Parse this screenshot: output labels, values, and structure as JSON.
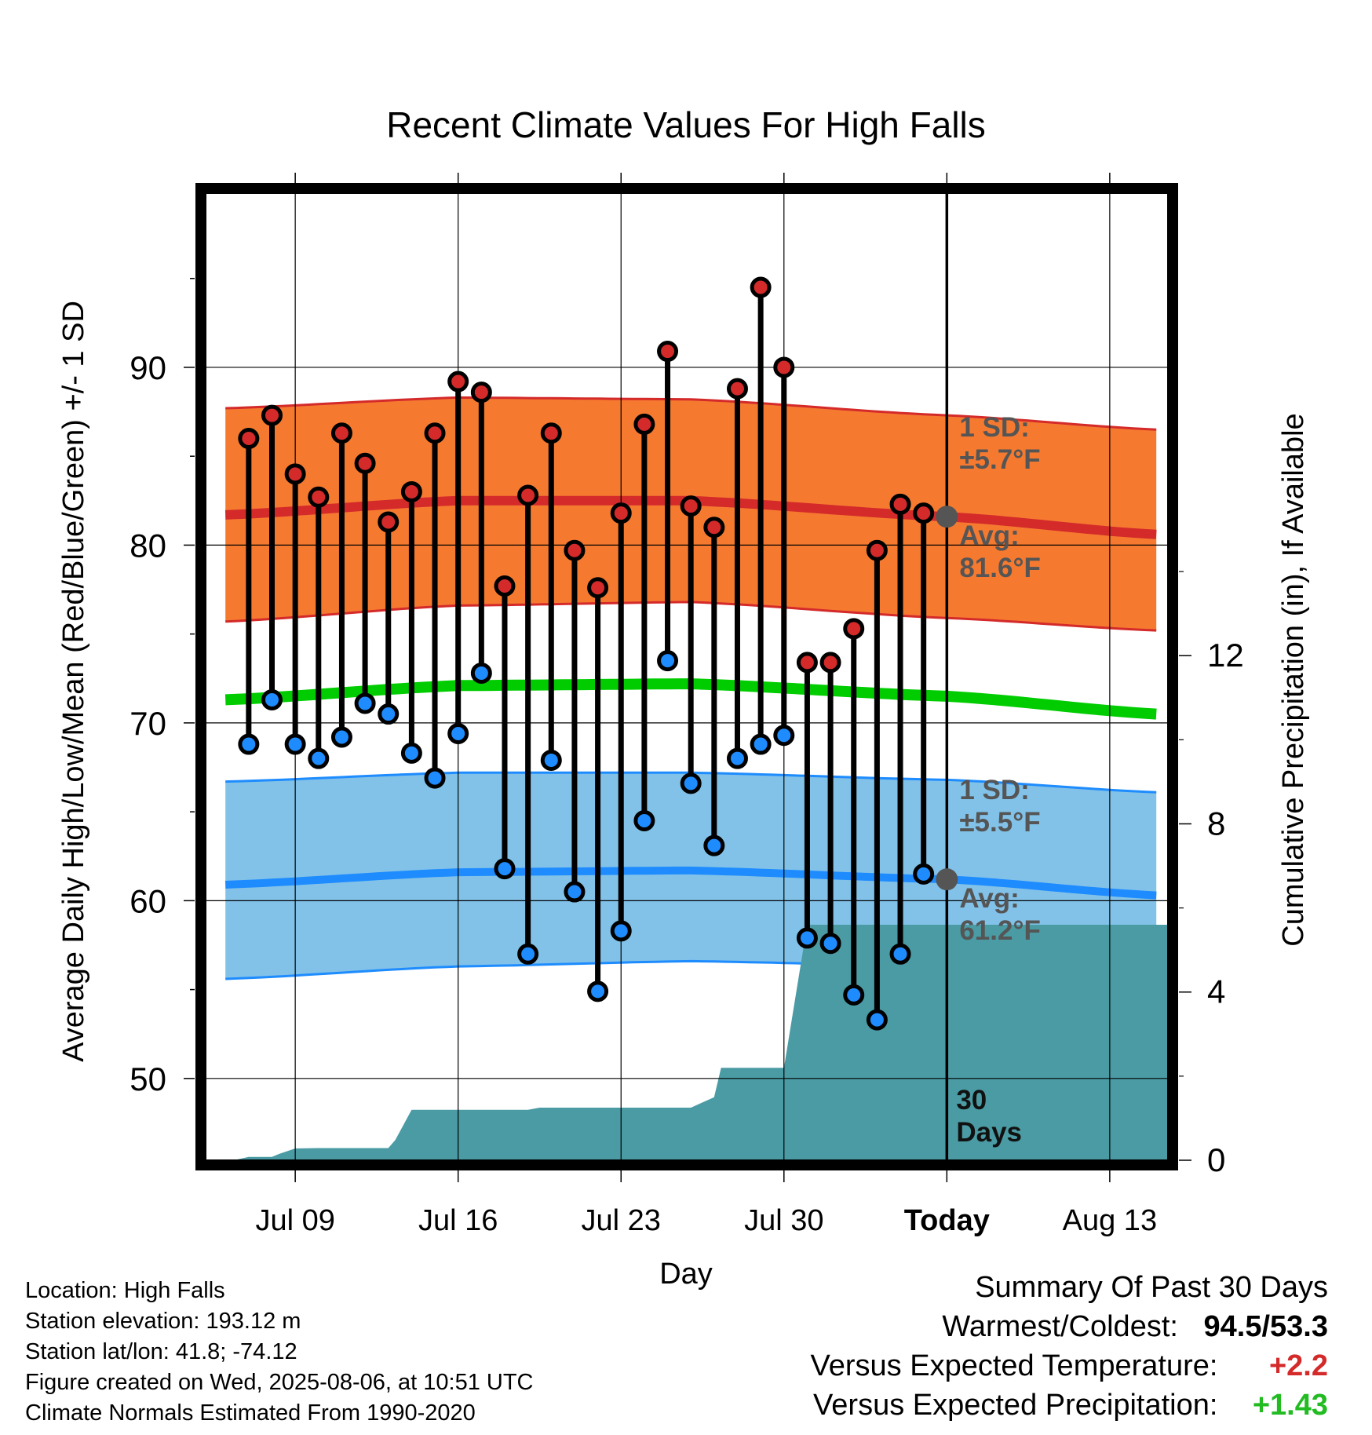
{
  "chart_data": {
    "type": "line",
    "title": "Recent Climate Values For High Falls",
    "xlabel": "Day",
    "ylabel": "Average Daily High/Low/Mean (Red/Blue/Green) +/- 1 SD",
    "y2label": "Cumulative Precipitation (in), If Available",
    "xlim": [
      -0.85,
      40.5
    ],
    "ylim": [
      45.4,
      99.8
    ],
    "y2lim": [
      0,
      23
    ],
    "x_ticks": [
      {
        "x": 3,
        "label": "Jul 09"
      },
      {
        "x": 10,
        "label": "Jul 16"
      },
      {
        "x": 17,
        "label": "Jul 23"
      },
      {
        "x": 24,
        "label": "Jul 30"
      },
      {
        "x": 31,
        "label": "Today"
      },
      {
        "x": 38,
        "label": "Aug 13"
      }
    ],
    "y_ticks": [
      50,
      60,
      70,
      80,
      90
    ],
    "y2_ticks": [
      0,
      4,
      8,
      12
    ],
    "grid": true,
    "x_index_note": "0 = Jul 06, 31 = Today (Aug 06)",
    "days": [
      1,
      2,
      3,
      4,
      5,
      6,
      7,
      8,
      9,
      10,
      11,
      12,
      13,
      14,
      15,
      16,
      17,
      18,
      19,
      20,
      21,
      22,
      23,
      24,
      25,
      26,
      27,
      28,
      29,
      30
    ],
    "highs": [
      86.0,
      87.3,
      84.0,
      82.7,
      86.3,
      84.6,
      81.3,
      83.0,
      86.3,
      89.2,
      88.6,
      77.7,
      82.8,
      86.3,
      79.7,
      77.6,
      81.8,
      86.8,
      90.9,
      82.2,
      81.0,
      88.8,
      94.5,
      90.0,
      73.4,
      73.4,
      75.3,
      79.7,
      82.3,
      81.8
    ],
    "lows": [
      68.8,
      71.3,
      68.8,
      68.0,
      69.2,
      71.1,
      70.5,
      68.3,
      66.9,
      69.4,
      72.8,
      61.8,
      57.0,
      67.9,
      60.5,
      54.9,
      58.3,
      64.5,
      73.5,
      66.6,
      63.1,
      68.0,
      68.8,
      69.3,
      57.9,
      57.6,
      54.7,
      53.3,
      57.0,
      61.5
    ],
    "normals": {
      "x": [
        0,
        10,
        20,
        31,
        40
      ],
      "high_mean": [
        81.7,
        82.5,
        82.5,
        81.6,
        80.6
      ],
      "high_upper": [
        87.7,
        88.3,
        88.2,
        87.3,
        86.5
      ],
      "high_lower": [
        75.7,
        76.6,
        76.8,
        75.9,
        75.2
      ],
      "mean": [
        71.3,
        72.1,
        72.2,
        71.5,
        70.5
      ],
      "low_mean": [
        60.9,
        61.6,
        61.7,
        61.2,
        60.3
      ],
      "low_upper": [
        66.7,
        67.2,
        67.2,
        66.8,
        66.1
      ],
      "low_lower": [
        55.6,
        56.3,
        56.6,
        56.3,
        55.3
      ]
    },
    "precip": {
      "x": [
        0.35,
        1,
        2,
        2.3,
        3,
        4,
        5,
        6,
        7,
        7.3,
        8,
        9,
        10,
        11,
        12,
        13,
        13.5,
        14,
        15,
        16,
        17,
        18,
        19,
        20,
        21,
        21.3,
        22,
        23,
        24,
        25,
        26,
        40.5
      ],
      "y": [
        0,
        0.08,
        0.08,
        0.15,
        0.28,
        0.29,
        0.29,
        0.29,
        0.29,
        0.48,
        1.2,
        1.2,
        1.2,
        1.2,
        1.2,
        1.2,
        1.25,
        1.25,
        1.25,
        1.25,
        1.25,
        1.25,
        1.25,
        1.25,
        1.5,
        2.2,
        2.2,
        2.2,
        2.2,
        5.6,
        5.6,
        5.6
      ]
    },
    "annotations": {
      "high_sd_1": "1 SD:",
      "high_sd_2": "±5.7°F",
      "high_avg_1": "Avg:",
      "high_avg_2": "81.6°F",
      "low_sd_1": "1 SD:",
      "low_sd_2": "±5.5°F",
      "low_avg_1": "Avg:",
      "low_avg_2": "61.2°F",
      "days_1": "30",
      "days_2": "Days",
      "today_high_avg": 81.6,
      "today_low_avg": 61.2
    },
    "colors": {
      "high": "#d42a2a",
      "high_band": "#f57a30",
      "low": "#1e8cff",
      "low_band": "#82c2e8",
      "mean": "#00cc00",
      "precip": "#4a9ba4",
      "annotation": "#555555"
    }
  },
  "info": {
    "location": "Location: High Falls",
    "elevation": "Station elevation: 193.12 m",
    "latlon": "Station lat/lon: 41.8; -74.12",
    "created": "Figure created on Wed, 2025-08-06, at 10:51 UTC",
    "normals": "Climate Normals Estimated From 1990-2020"
  },
  "summary": {
    "title": "Summary Of Past 30 Days",
    "warm_label": "Warmest/Coldest:",
    "warm_value": "94.5/53.3",
    "temp_label": "Versus Expected Temperature:",
    "temp_value": "+2.2",
    "precip_label": "Versus Expected Precipitation:",
    "precip_value": "+1.43",
    "temp_color": "#d42a2a",
    "precip_color": "#22bb22"
  }
}
